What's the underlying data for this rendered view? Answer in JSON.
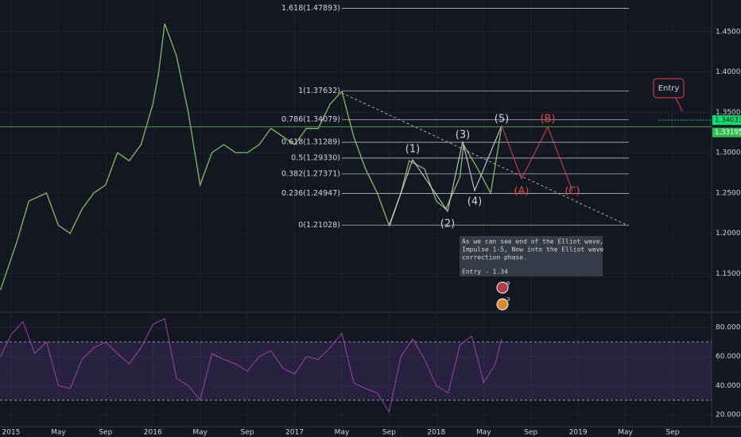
{
  "chart_data": {
    "type": "line",
    "xticks": [
      {
        "value": 0,
        "label": "2015"
      },
      {
        "value": 4,
        "label": "May"
      },
      {
        "value": 8,
        "label": "Sep"
      },
      {
        "value": 12,
        "label": "2016"
      },
      {
        "value": 16,
        "label": "May"
      },
      {
        "value": 20,
        "label": "Sep"
      },
      {
        "value": 24,
        "label": "2017"
      },
      {
        "value": 28,
        "label": "May"
      },
      {
        "value": 32,
        "label": "Sep"
      },
      {
        "value": 36,
        "label": "2018"
      },
      {
        "value": 40,
        "label": "May"
      },
      {
        "value": 44,
        "label": "Sep"
      },
      {
        "value": 48,
        "label": "2019"
      },
      {
        "value": 52,
        "label": "May"
      },
      {
        "value": 56,
        "label": "Sep"
      }
    ],
    "xlim": [
      -0.94,
      59.3
    ],
    "ylim": [
      1.1032,
      1.4892
    ],
    "yticks": [
      {
        "value": 1.45,
        "label": "1.45000"
      },
      {
        "value": 1.4,
        "label": "1.40000"
      },
      {
        "value": 1.35,
        "label": "1.35000"
      },
      {
        "value": 1.3,
        "label": "1.30000"
      },
      {
        "value": 1.25,
        "label": "1.25000"
      },
      {
        "value": 1.2,
        "label": "1.20000"
      },
      {
        "value": 1.15,
        "label": "1.15000"
      }
    ],
    "x": [
      -0.9,
      0.5,
      1.5,
      3,
      4,
      5,
      6,
      7,
      8,
      9,
      10,
      11,
      12,
      12.5,
      13,
      14,
      15,
      16,
      17,
      18,
      19,
      20,
      21,
      22,
      23,
      24,
      25,
      26,
      27,
      28,
      29,
      30,
      31,
      32,
      33,
      33.7,
      35,
      36,
      36.8,
      38,
      38.3,
      39.5,
      40.6,
      41.5
    ],
    "series": [
      {
        "color": "#7fbf5f",
        "values": [
          1.13,
          1.19,
          1.24,
          1.25,
          1.21,
          1.2,
          1.23,
          1.25,
          1.26,
          1.3,
          1.29,
          1.31,
          1.36,
          1.4,
          1.46,
          1.42,
          1.35,
          1.26,
          1.3,
          1.31,
          1.3,
          1.3,
          1.31,
          1.33,
          1.32,
          1.31,
          1.33,
          1.33,
          1.36,
          1.376,
          1.32,
          1.28,
          1.25,
          1.21,
          1.25,
          1.29,
          1.28,
          1.24,
          1.23,
          1.27,
          1.31,
          1.28,
          1.25,
          1.33
        ]
      }
    ],
    "last_price": {
      "value": 1.33195,
      "label": "1.33195"
    },
    "entry_price": {
      "value": 1.34033,
      "label": "1.34033"
    },
    "fib_levels": [
      {
        "label": "1.618(1.47893)",
        "value": 1.47893
      },
      {
        "label": "1(1.37632)",
        "value": 1.37632
      },
      {
        "label": "0.786(1.34079)",
        "value": 1.34079
      },
      {
        "label": "0.618(1.31289)",
        "value": 1.31289
      },
      {
        "label": "0.5(1.29330)",
        "value": 1.2933
      },
      {
        "label": "0.382(1.27371)",
        "value": 1.27371
      },
      {
        "label": "0.236(1.24947)",
        "value": 1.24947
      },
      {
        "label": "0(1.21028)",
        "value": 1.21028
      }
    ],
    "fib_x": [
      28,
      52.3
    ],
    "wave_labels": [
      "(1)",
      "(2)",
      "(3)",
      "(4)",
      "(5)",
      "(A)",
      "(B)",
      "(C)"
    ],
    "entry_note": "Entry",
    "note_lines": [
      "As we can see end of the Elliot wave,",
      "Impulse 1-5, Now into the Elliot wave",
      "correction phase.",
      "Entry - 1.34"
    ],
    "badges": [
      "9",
      "3"
    ],
    "rsi": {
      "ylim": [
        12.9,
        89.3
      ],
      "yticks": [
        {
          "value": 80,
          "label": "80.0000"
        },
        {
          "value": 60,
          "label": "60.0000"
        },
        {
          "value": 40,
          "label": "40.0000"
        },
        {
          "value": 20,
          "label": "20.0000"
        }
      ],
      "bands": [
        70,
        30
      ],
      "color": "#a33fb5",
      "x": [
        -0.9,
        0,
        1,
        2,
        3,
        4,
        5,
        6,
        7,
        8,
        9,
        10,
        11,
        12,
        13,
        14,
        15,
        16,
        17,
        18,
        19,
        20,
        21,
        22,
        23,
        24,
        25,
        26,
        27,
        28,
        29,
        30,
        31,
        32,
        33,
        34,
        35,
        36,
        37,
        38,
        39,
        40,
        41,
        41.5
      ],
      "values": [
        60,
        75,
        84,
        62,
        70,
        40,
        38,
        58,
        66,
        70,
        62,
        55,
        66,
        82,
        86,
        45,
        40,
        30,
        62,
        58,
        55,
        50,
        60,
        64,
        52,
        48,
        60,
        58,
        66,
        76,
        42,
        38,
        35,
        22,
        60,
        72,
        58,
        40,
        35,
        68,
        74,
        42,
        55,
        72
      ]
    }
  }
}
